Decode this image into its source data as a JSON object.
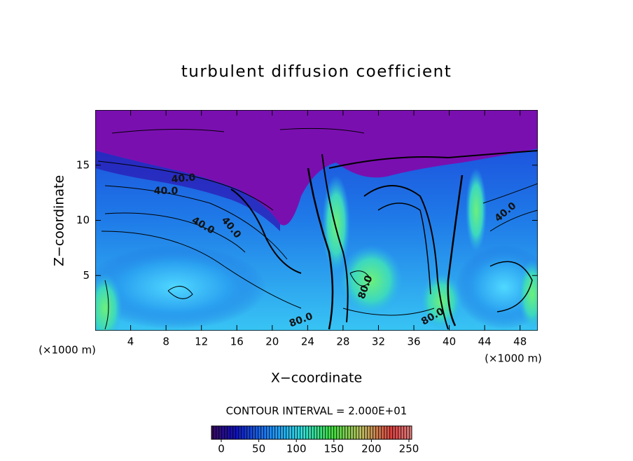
{
  "chart_data": {
    "type": "contour",
    "title": "turbulent diffusion coefficient",
    "xlabel": "X−coordinate",
    "ylabel": "Z−coordinate",
    "x_unit_label": "(×1000 m)",
    "x_unit_label_right": "(×1000 m)",
    "contour_interval_label": "CONTOUR INTERVAL = 2.000E+01",
    "xlim": [
      0,
      50
    ],
    "xticks": [
      4,
      8,
      12,
      16,
      20,
      24,
      28,
      32,
      36,
      40,
      44,
      48
    ],
    "ylim": [
      0,
      20
    ],
    "yticks": [
      5,
      10,
      15
    ],
    "clim": [
      0,
      250
    ],
    "cticks": [
      0,
      50,
      100,
      150,
      200,
      250
    ],
    "contour_labels": [
      "40.0",
      "40.0",
      "40.0",
      "40.0",
      "40.0",
      "80.0",
      "80.0",
      "80.0"
    ]
  }
}
